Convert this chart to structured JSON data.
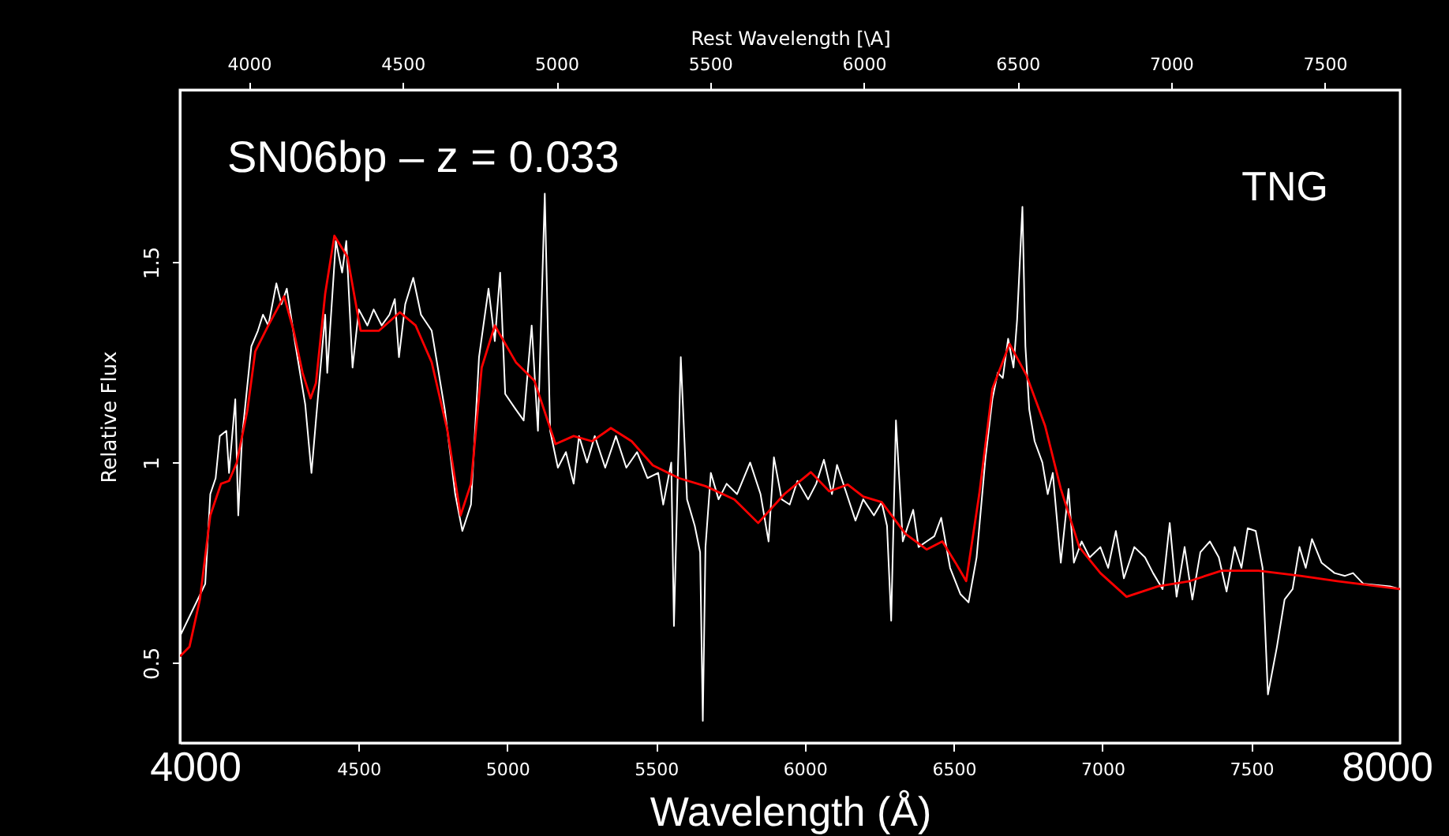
{
  "chart_data": {
    "type": "line",
    "xlabel": "Wavelength (Å)",
    "ylabel": "Relative Flux",
    "x2label": "Rest Wavelength [\\A]",
    "xlim": [
      3900,
      8000
    ],
    "xticks": [
      4500,
      5000,
      5500,
      6000,
      6500,
      7000,
      7500
    ],
    "x2lim": [
      3775,
      7745
    ],
    "x2ticks": [
      4000,
      4500,
      5000,
      5500,
      6000,
      6500,
      7000,
      7500
    ],
    "ylim": [
      0.3,
      1.93
    ],
    "yticks": [
      0.5,
      1,
      1.5
    ],
    "grid": false,
    "annotations": [
      "SN06bp – z = 0.033",
      "TNG",
      "4000",
      "8000"
    ],
    "series": [
      {
        "color": "#ffffff",
        "x": [
          3900,
          3985,
          4002,
          4020,
          4034,
          4056,
          4065,
          4086,
          4096,
          4109,
          4140,
          4162,
          4179,
          4197,
          4224,
          4241,
          4259,
          4286,
          4321,
          4342,
          4357,
          4388,
          4395,
          4424,
          4445,
          4459,
          4480,
          4501,
          4530,
          4551,
          4578,
          4604,
          4622,
          4636,
          4657,
          4684,
          4710,
          4746,
          4790,
          4825,
          4849,
          4878,
          4905,
          4937,
          4958,
          4976,
          4993,
          5029,
          5055,
          5082,
          5103,
          5126,
          5144,
          5170,
          5197,
          5223,
          5241,
          5268,
          5294,
          5329,
          5365,
          5400,
          5436,
          5471,
          5507,
          5524,
          5551,
          5560,
          5583,
          5604,
          5630,
          5648,
          5657,
          5666,
          5684,
          5710,
          5737,
          5772,
          5816,
          5851,
          5878,
          5896,
          5922,
          5949,
          5975,
          6011,
          6038,
          6064,
          6091,
          6108,
          6135,
          6170,
          6196,
          6232,
          6258,
          6276,
          6290,
          6306,
          6329,
          6364,
          6382,
          6409,
          6435,
          6458,
          6488,
          6523,
          6550,
          6577,
          6607,
          6630,
          6648,
          6665,
          6683,
          6701,
          6713,
          6731,
          6741,
          6754,
          6772,
          6798,
          6816,
          6833,
          6860,
          6886,
          6904,
          6930,
          6957,
          6993,
          7019,
          7045,
          7072,
          7107,
          7143,
          7170,
          7202,
          7226,
          7249,
          7276,
          7302,
          7329,
          7361,
          7391,
          7417,
          7444,
          7467,
          7488,
          7515,
          7538,
          7556,
          7586,
          7612,
          7639,
          7662,
          7683,
          7704,
          7736,
          7780,
          7815,
          7842,
          7877,
          7966,
          8000
        ],
        "values": [
          0.566,
          0.697,
          0.921,
          0.961,
          1.066,
          1.079,
          0.974,
          1.158,
          0.868,
          1.066,
          1.29,
          1.329,
          1.369,
          1.342,
          1.447,
          1.395,
          1.434,
          1.303,
          1.145,
          0.974,
          1.105,
          1.369,
          1.224,
          1.553,
          1.474,
          1.553,
          1.237,
          1.382,
          1.342,
          1.382,
          1.342,
          1.369,
          1.408,
          1.263,
          1.395,
          1.461,
          1.369,
          1.329,
          1.132,
          0.921,
          0.829,
          0.895,
          1.263,
          1.434,
          1.303,
          1.474,
          1.171,
          1.132,
          1.105,
          1.342,
          1.079,
          1.671,
          1.079,
          0.987,
          1.026,
          0.947,
          1.066,
          1.0,
          1.066,
          0.987,
          1.066,
          0.987,
          1.026,
          0.961,
          0.974,
          0.895,
          1.0,
          0.592,
          1.263,
          0.908,
          0.842,
          0.776,
          0.355,
          0.789,
          0.974,
          0.908,
          0.947,
          0.921,
          1.0,
          0.921,
          0.803,
          1.013,
          0.908,
          0.895,
          0.954,
          0.908,
          0.947,
          1.007,
          0.921,
          0.994,
          0.934,
          0.855,
          0.908,
          0.868,
          0.901,
          0.842,
          0.605,
          1.105,
          0.803,
          0.882,
          0.789,
          0.803,
          0.816,
          0.862,
          0.737,
          0.671,
          0.651,
          0.763,
          1.013,
          1.158,
          1.224,
          1.211,
          1.309,
          1.237,
          1.355,
          1.638,
          1.29,
          1.132,
          1.053,
          1.0,
          0.921,
          0.974,
          0.75,
          0.934,
          0.75,
          0.803,
          0.763,
          0.789,
          0.737,
          0.829,
          0.711,
          0.789,
          0.763,
          0.724,
          0.684,
          0.849,
          0.665,
          0.789,
          0.658,
          0.776,
          0.803,
          0.763,
          0.678,
          0.789,
          0.737,
          0.836,
          0.829,
          0.737,
          0.421,
          0.539,
          0.658,
          0.684,
          0.789,
          0.737,
          0.809,
          0.75,
          0.724,
          0.717,
          0.724,
          0.697,
          0.691,
          0.684
        ]
      },
      {
        "color": "#ff0000",
        "x": [
          3900,
          3932,
          3967,
          4002,
          4038,
          4065,
          4091,
          4127,
          4153,
          4197,
          4250,
          4282,
          4312,
          4339,
          4357,
          4388,
          4419,
          4463,
          4507,
          4569,
          4639,
          4692,
          4746,
          4799,
          4843,
          4878,
          4914,
          4958,
          5029,
          5091,
          5162,
          5223,
          5285,
          5348,
          5418,
          5489,
          5577,
          5666,
          5763,
          5843,
          5931,
          6020,
          6082,
          6144,
          6196,
          6258,
          6338,
          6409,
          6462,
          6506,
          6542,
          6586,
          6630,
          6688,
          6745,
          6807,
          6860,
          6922,
          6993,
          7081,
          7187,
          7293,
          7400,
          7524,
          7665,
          7789,
          8000
        ],
        "values": [
          0.516,
          0.54,
          0.658,
          0.868,
          0.947,
          0.954,
          1.0,
          1.132,
          1.277,
          1.342,
          1.415,
          1.329,
          1.224,
          1.16,
          1.198,
          1.421,
          1.566,
          1.513,
          1.329,
          1.329,
          1.375,
          1.342,
          1.25,
          1.079,
          0.868,
          0.947,
          1.237,
          1.342,
          1.25,
          1.204,
          1.046,
          1.066,
          1.053,
          1.086,
          1.053,
          0.993,
          0.961,
          0.941,
          0.908,
          0.849,
          0.921,
          0.976,
          0.928,
          0.945,
          0.915,
          0.901,
          0.822,
          0.783,
          0.803,
          0.75,
          0.704,
          0.921,
          1.184,
          1.296,
          1.217,
          1.092,
          0.934,
          0.789,
          0.724,
          0.665,
          0.691,
          0.704,
          0.73,
          0.73,
          0.717,
          0.704,
          0.684
        ]
      }
    ]
  }
}
